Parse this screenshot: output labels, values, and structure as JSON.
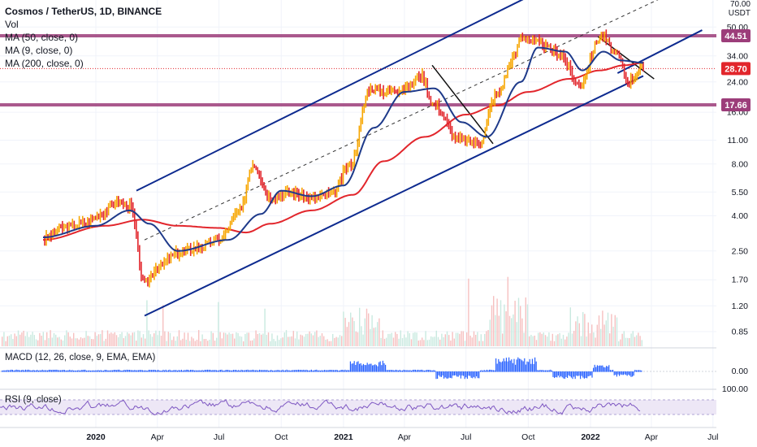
{
  "header": {
    "title": "Cosmos / TetherUS, 1D, BINANCE",
    "indicators": [
      "Vol",
      "MA (50, close, 0)",
      "MA (9, close, 0)",
      "MA (200, close, 0)"
    ],
    "currency_top": "70.00",
    "currency_unit": "USDT"
  },
  "panes": {
    "macd_label": "MACD (12, 26, close, 9, EMA, EMA)",
    "rsi_label": "RSI (9, close)",
    "macd_zero_tick": "0.00",
    "rsi_top_tick": "100.00"
  },
  "colors": {
    "up": "#f7a600",
    "down": "#e2262c",
    "ma50": "#1e3a8a",
    "ma200": "#e2262c",
    "channel": "#0d2a8f",
    "hline": "#9c3d7a",
    "current": "#e2262c",
    "macd_hist": "#2962ff",
    "rsi_line": "#7e57c2",
    "rsi_band": "#ede7f6"
  },
  "chart_data": {
    "type": "line",
    "title": "Cosmos / TetherUS, 1D, BINANCE",
    "scale": "log",
    "ylim": [
      0.7,
      75
    ],
    "y_ticks": [
      0.85,
      1.2,
      1.7,
      2.5,
      4.0,
      5.5,
      8.0,
      11.0,
      16.0,
      24.0,
      34.0,
      50.0
    ],
    "x_ticks": [
      "2020",
      "Apr",
      "Jul",
      "Oct",
      "2021",
      "Apr",
      "Jul",
      "Oct",
      "2022",
      "Apr",
      "Jul"
    ],
    "price_tags": [
      {
        "value": 44.51,
        "label": "44.51",
        "kind": "resistance"
      },
      {
        "value": 28.7,
        "label": "28.70",
        "kind": "current"
      },
      {
        "value": 17.66,
        "label": "17.66",
        "kind": "support"
      }
    ],
    "series": [
      {
        "name": "Cosmos / TetherUS",
        "x": [
          "2019-10-15",
          "2019-11-15",
          "2019-12-15",
          "2020-01-10",
          "2020-02-01",
          "2020-02-20",
          "2020-03-13",
          "2020-04-01",
          "2020-05-01",
          "2020-06-01",
          "2020-07-01",
          "2020-08-01",
          "2020-08-20",
          "2020-09-15",
          "2020-10-15",
          "2020-11-15",
          "2020-12-15",
          "2021-01-10",
          "2021-02-10",
          "2021-03-01",
          "2021-04-05",
          "2021-04-25",
          "2021-05-15",
          "2021-06-20",
          "2021-07-20",
          "2021-08-15",
          "2021-09-10",
          "2021-09-20",
          "2021-10-15",
          "2021-11-15",
          "2021-12-15",
          "2022-01-17",
          "2022-02-10",
          "2022-02-25",
          "2022-03-20"
        ],
        "y": [
          2.9,
          3.4,
          3.6,
          4.1,
          4.8,
          4.5,
          1.6,
          2.0,
          2.4,
          2.6,
          2.9,
          4.2,
          8.0,
          5.1,
          5.4,
          5.0,
          5.3,
          7.8,
          22.0,
          21.0,
          22.0,
          26.0,
          17.5,
          11.0,
          10.5,
          20.0,
          33.0,
          44.0,
          40.0,
          35.0,
          23.0,
          44.0,
          34.0,
          24.0,
          28.7
        ]
      },
      {
        "name": "MA (50, close, 0)",
        "x": [
          "2019-10-15",
          "2020-01-01",
          "2020-02-20",
          "2020-03-20",
          "2020-05-01",
          "2020-07-15",
          "2020-09-01",
          "2020-10-01",
          "2020-11-15",
          "2021-01-01",
          "2021-02-15",
          "2021-04-01",
          "2021-05-15",
          "2021-06-25",
          "2021-08-01",
          "2021-09-20",
          "2021-10-15",
          "2021-11-25",
          "2021-12-20",
          "2022-01-20",
          "2022-02-15",
          "2022-03-20"
        ],
        "y": [
          3.0,
          3.5,
          4.3,
          3.6,
          2.5,
          2.9,
          4.1,
          5.6,
          5.2,
          6.0,
          13.0,
          21.0,
          22.0,
          14.0,
          11.5,
          24.0,
          38.0,
          36.0,
          28.0,
          36.0,
          32.0,
          31.0
        ]
      },
      {
        "name": "MA (200, close, 0)",
        "x": [
          "2019-10-15",
          "2020-01-15",
          "2020-03-10",
          "2020-05-01",
          "2020-07-01",
          "2020-08-10",
          "2020-09-15",
          "2020-11-15",
          "2021-01-15",
          "2021-03-01",
          "2021-05-01",
          "2021-07-01",
          "2021-08-15",
          "2021-10-01",
          "2021-12-01",
          "2022-01-15",
          "2022-02-20",
          "2022-03-20"
        ],
        "y": [
          2.9,
          3.5,
          3.8,
          3.5,
          3.4,
          3.2,
          3.6,
          4.3,
          5.3,
          8.3,
          11.5,
          15.5,
          17.5,
          21.0,
          25.0,
          28.0,
          30.0,
          31.0
        ]
      }
    ]
  }
}
